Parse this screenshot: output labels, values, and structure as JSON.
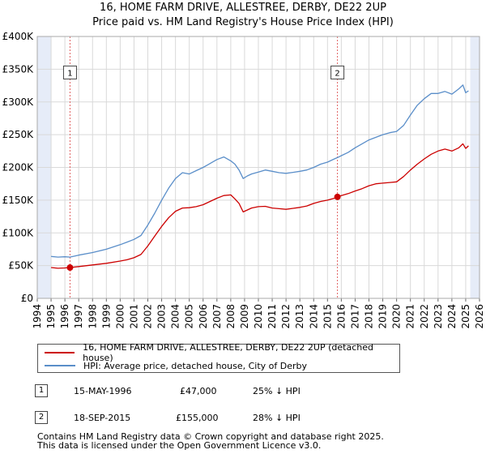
{
  "chart_data": {
    "type": "line",
    "title": "16, HOME FARM DRIVE, ALLESTREE, DERBY, DE22 2UP",
    "subtitle": "Price paid vs. HM Land Registry's House Price Index (HPI)",
    "xlim": [
      1994,
      2026
    ],
    "ylim": [
      0,
      400000
    ],
    "x_ticks": [
      1994,
      1995,
      1996,
      1997,
      1998,
      1999,
      2000,
      2001,
      2002,
      2003,
      2004,
      2005,
      2006,
      2007,
      2008,
      2009,
      2010,
      2011,
      2012,
      2013,
      2014,
      2015,
      2016,
      2017,
      2018,
      2019,
      2020,
      2021,
      2022,
      2023,
      2024,
      2025,
      2026
    ],
    "y_ticks": [
      0,
      50000,
      100000,
      150000,
      200000,
      250000,
      300000,
      350000,
      400000
    ],
    "y_tick_labels": [
      "£0",
      "£50K",
      "£100K",
      "£150K",
      "£200K",
      "£250K",
      "£300K",
      "£350K",
      "£400K"
    ],
    "grid": true,
    "data_start": 1995.0,
    "data_end": 2025.33,
    "series": [
      {
        "name": "16, HOME FARM DRIVE, ALLESTREE, DERBY, DE22 2UP (detached house)",
        "color": "#cc0000",
        "x": [
          1995.0,
          1995.5,
          1996.0,
          1996.37,
          1997.0,
          1998.0,
          1999.0,
          2000.0,
          2000.5,
          2001.0,
          2001.5,
          2002.0,
          2002.5,
          2003.0,
          2003.5,
          2004.0,
          2004.5,
          2005.0,
          2005.5,
          2006.0,
          2006.5,
          2007.0,
          2007.5,
          2008.0,
          2008.3,
          2008.6,
          2008.9,
          2009.2,
          2009.5,
          2010.0,
          2010.5,
          2011.0,
          2011.5,
          2012.0,
          2012.5,
          2013.0,
          2013.5,
          2014.0,
          2014.5,
          2015.0,
          2015.5,
          2015.72,
          2016.0,
          2016.5,
          2017.0,
          2017.5,
          2018.0,
          2018.5,
          2019.0,
          2019.5,
          2020.0,
          2020.5,
          2021.0,
          2021.5,
          2022.0,
          2022.5,
          2023.0,
          2023.5,
          2024.0,
          2024.5,
          2024.8,
          2025.0,
          2025.2
        ],
        "values": [
          47000,
          46000,
          46500,
          47000,
          48500,
          51000,
          53500,
          57000,
          59000,
          62000,
          67000,
          80000,
          95000,
          110000,
          123000,
          133000,
          138000,
          138500,
          140000,
          143000,
          148000,
          153000,
          157000,
          158000,
          152000,
          145000,
          132000,
          135000,
          138000,
          140000,
          140500,
          138000,
          137000,
          136000,
          137500,
          139000,
          141000,
          145000,
          148000,
          150000,
          153000,
          155000,
          157000,
          160000,
          164000,
          167500,
          172000,
          175000,
          176000,
          177000,
          178000,
          186000,
          196000,
          205000,
          213000,
          220000,
          225000,
          228000,
          225000,
          230000,
          236000,
          229000,
          233000
        ]
      },
      {
        "name": "HPI: Average price, detached house, City of Derby",
        "color": "#5a8ec9",
        "x": [
          1995.0,
          1995.5,
          1996.0,
          1996.37,
          1997.0,
          1998.0,
          1999.0,
          2000.0,
          2000.5,
          2001.0,
          2001.5,
          2002.0,
          2002.5,
          2003.0,
          2003.5,
          2004.0,
          2004.5,
          2005.0,
          2005.5,
          2006.0,
          2006.5,
          2007.0,
          2007.5,
          2008.0,
          2008.3,
          2008.6,
          2008.9,
          2009.2,
          2009.5,
          2010.0,
          2010.5,
          2011.0,
          2011.5,
          2012.0,
          2012.5,
          2013.0,
          2013.5,
          2014.0,
          2014.5,
          2015.0,
          2015.5,
          2015.72,
          2016.0,
          2016.5,
          2017.0,
          2017.5,
          2018.0,
          2018.5,
          2019.0,
          2019.5,
          2020.0,
          2020.5,
          2021.0,
          2021.5,
          2022.0,
          2022.5,
          2023.0,
          2023.5,
          2024.0,
          2024.5,
          2024.8,
          2025.0,
          2025.2
        ],
        "values": [
          64000,
          63000,
          63500,
          63000,
          66000,
          70000,
          75000,
          82000,
          86000,
          90000,
          96000,
          112000,
          130000,
          150000,
          168000,
          183000,
          192000,
          190000,
          195000,
          200000,
          206000,
          212000,
          216000,
          210000,
          205000,
          196000,
          183000,
          187000,
          190000,
          193000,
          196000,
          194000,
          192000,
          191000,
          192500,
          194000,
          196000,
          200000,
          205000,
          208000,
          213000,
          215000,
          218000,
          223000,
          230000,
          236000,
          242000,
          246000,
          250000,
          253000,
          255000,
          264000,
          280000,
          295000,
          305000,
          313000,
          313000,
          316000,
          312000,
          320000,
          326000,
          314000,
          317000
        ]
      }
    ],
    "sales": [
      {
        "label": "1",
        "date": "15-MAY-1996",
        "x": 1996.37,
        "price_label": "£47,000",
        "price": 47000,
        "hpi_diff": "25% ↓ HPI"
      },
      {
        "label": "2",
        "date": "18-SEP-2015",
        "x": 2015.72,
        "price_label": "£155,000",
        "price": 155000,
        "hpi_diff": "28% ↓ HPI"
      }
    ],
    "marker_box_y": 345000
  },
  "footer": {
    "line1": "Contains HM Land Registry data © Crown copyright and database right 2025.",
    "line2": "This data is licensed under the Open Government Licence v3.0."
  }
}
